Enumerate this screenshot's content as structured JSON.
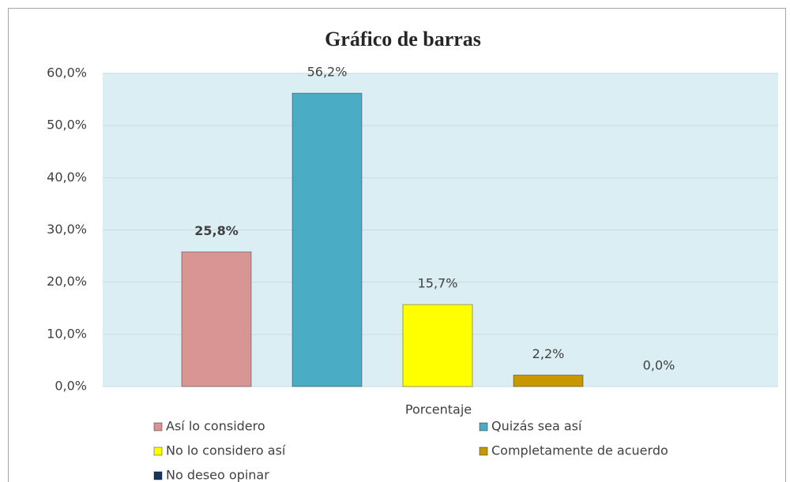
{
  "chart_data": {
    "type": "bar",
    "title": "Gráfico de barras",
    "categories": [
      "Porcentaje"
    ],
    "series": [
      {
        "name": "Así lo considero",
        "color": "#d99594",
        "values": [
          25.8
        ],
        "value_labels": [
          "25,8%"
        ]
      },
      {
        "name": "Quizás sea así",
        "color": "#4bacc6",
        "values": [
          56.2
        ],
        "value_labels": [
          "56,2%"
        ]
      },
      {
        "name": "No lo considero así",
        "color": "#ffff00",
        "values": [
          15.7
        ],
        "value_labels": [
          "15,7%"
        ]
      },
      {
        "name": "Completamente de acuerdo",
        "color": "#c89800",
        "values": [
          2.2
        ],
        "value_labels": [
          "2,2%"
        ]
      },
      {
        "name": "No deseo opinar",
        "color": "#17375e",
        "values": [
          0.0
        ],
        "value_labels": [
          "0,0%"
        ]
      }
    ],
    "ylim": [
      0,
      60
    ],
    "yticks": [
      {
        "value": 0,
        "label": "0,0%"
      },
      {
        "value": 10,
        "label": "10,0%"
      },
      {
        "value": 20,
        "label": "20,0%"
      },
      {
        "value": 30,
        "label": "30,0%"
      },
      {
        "value": 40,
        "label": "40,0%"
      },
      {
        "value": 50,
        "label": "50,0%"
      },
      {
        "value": 60,
        "label": "60,0%"
      }
    ],
    "grid": true
  }
}
